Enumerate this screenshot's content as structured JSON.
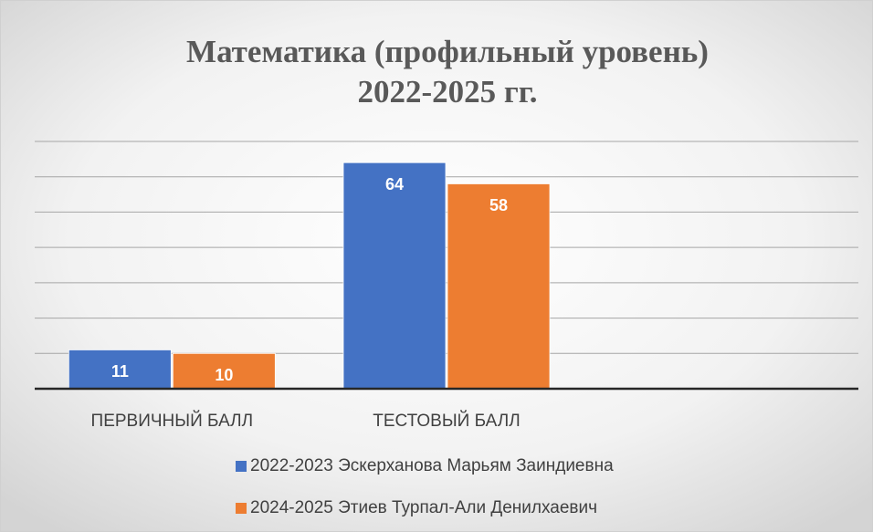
{
  "chart_data": {
    "type": "bar",
    "title": [
      "Математика  (профильный уровень)",
      "2022-2025 гг."
    ],
    "categories": [
      "ПЕРВИЧНЫЙ БАЛЛ",
      "ТЕСТОВЫЙ БАЛЛ",
      null
    ],
    "series": [
      {
        "name": "2022-2023 Эскерханова Марьям Заиндиевна",
        "color": "#4472c4",
        "values": [
          11,
          64,
          null
        ]
      },
      {
        "name": "2024-2025 Этиев Турпал-Али Денилхаевич",
        "color": "#ed7d31",
        "values": [
          10,
          58,
          null
        ]
      }
    ],
    "ylim": [
      0,
      70
    ],
    "yticks": [
      0,
      10,
      20,
      30,
      40,
      50,
      60,
      70
    ],
    "grid": true,
    "legend": "bottom"
  }
}
